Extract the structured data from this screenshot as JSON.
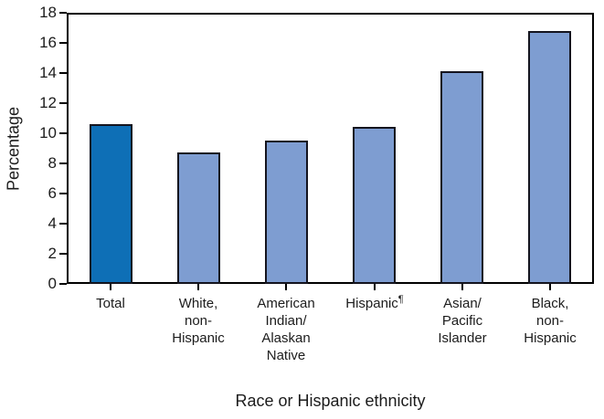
{
  "chart_data": {
    "type": "bar",
    "xlabel": "Race or Hispanic ethnicity",
    "ylabel": "Percentage",
    "ylim": [
      0,
      18
    ],
    "ytick_step": 2,
    "grid": false,
    "legend": null,
    "categories": [
      {
        "label": "Total",
        "lines": [
          "Total"
        ],
        "sup": ""
      },
      {
        "label": "White, non-Hispanic",
        "lines": [
          "White,",
          "non-",
          "Hispanic"
        ],
        "sup": ""
      },
      {
        "label": "American Indian/Alaskan Native",
        "lines": [
          "American",
          "Indian/",
          "Alaskan",
          "Native"
        ],
        "sup": ""
      },
      {
        "label": "Hispanic",
        "lines": [
          "Hispanic"
        ],
        "sup": "¶"
      },
      {
        "label": "Asian/Pacific Islander",
        "lines": [
          "Asian/",
          "Pacific",
          "Islander"
        ],
        "sup": ""
      },
      {
        "label": "Black, non-Hispanic",
        "lines": [
          "Black,",
          "non-",
          "Hispanic"
        ],
        "sup": ""
      }
    ],
    "values": [
      10.6,
      8.7,
      9.5,
      10.4,
      14.1,
      16.8
    ],
    "colors": {
      "bar_fill": [
        "#0e6fb6",
        "#7e9dd1",
        "#7e9dd1",
        "#7e9dd1",
        "#7e9dd1",
        "#7e9dd1"
      ],
      "bar_border": "#14141e",
      "axis": "#000000",
      "text": "#1c1c1c"
    }
  }
}
